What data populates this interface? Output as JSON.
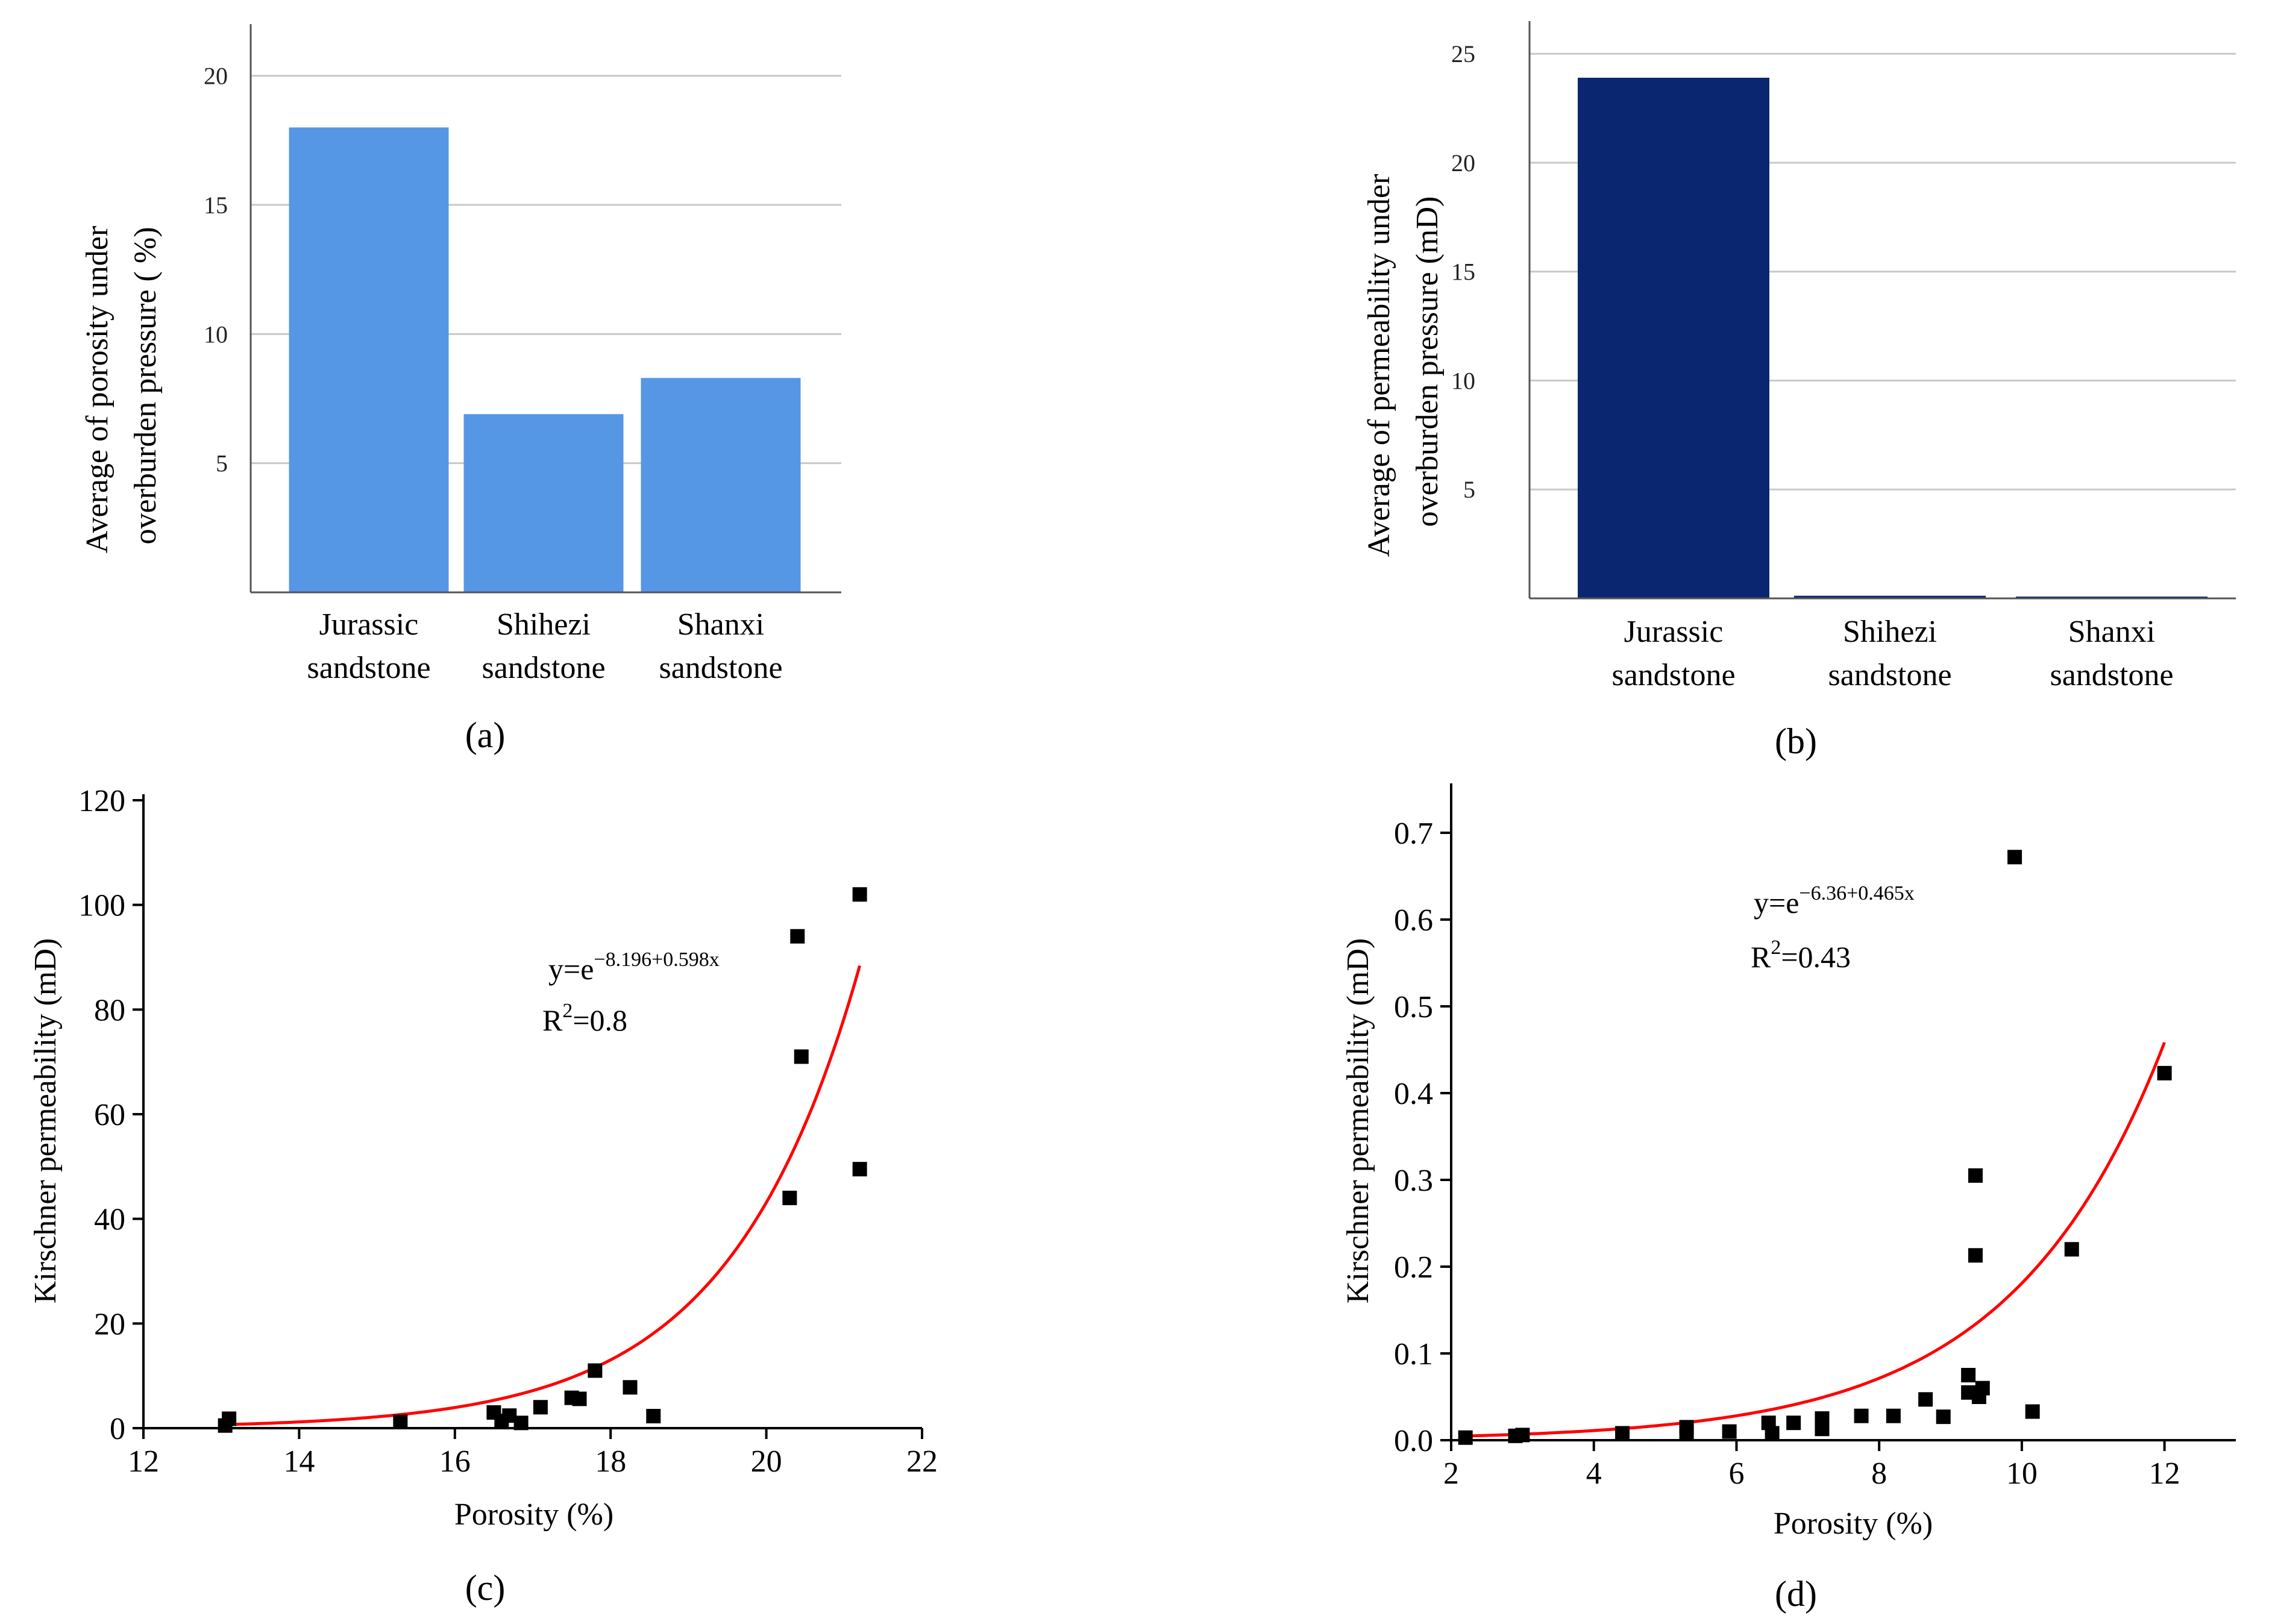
{
  "colors": {
    "bar_a": "#5697e5",
    "bar_b": "#0b2670",
    "fit_line": "#ff0000",
    "points": "#000000"
  },
  "chart_data": [
    {
      "id": "a",
      "type": "bar",
      "panel_label": "(a)",
      "categories": [
        "Jurassic sandstone",
        "Shihezi sandstone",
        "Shanxi sandstone"
      ],
      "category_lines": [
        [
          "Jurassic",
          "sandstone"
        ],
        [
          "Shihezi",
          "sandstone"
        ],
        [
          "Shanxi",
          "sandstone"
        ]
      ],
      "values": [
        18.0,
        6.9,
        8.3
      ],
      "ylabel": [
        "Average of porosity under",
        "overburden pressure ( %)"
      ],
      "ylim": [
        0,
        22
      ],
      "yticks": [
        5,
        10,
        15,
        20
      ],
      "grid": true
    },
    {
      "id": "b",
      "type": "bar",
      "panel_label": "(b)",
      "categories": [
        "Jurassic sandstone",
        "Shihezi sandstone",
        "Shanxi sandstone"
      ],
      "category_lines": [
        [
          "Jurassic",
          "sandstone"
        ],
        [
          "Shihezi",
          "sandstone"
        ],
        [
          "Shanxi",
          "sandstone"
        ]
      ],
      "values": [
        23.9,
        0.12,
        0.02
      ],
      "ylabel": [
        "Average of permeability under",
        "overburden pressure (mD)"
      ],
      "ylim": [
        0,
        26.5
      ],
      "yticks": [
        5,
        10,
        15,
        20,
        25
      ],
      "grid": true
    },
    {
      "id": "c",
      "type": "scatter",
      "panel_label": "(c)",
      "xlabel": "Porosity (%)",
      "ylabel": "Kirschner permeability (mD)",
      "xlim": [
        12,
        22
      ],
      "ylim": [
        0,
        120
      ],
      "xticks": [
        12,
        14,
        16,
        18,
        20,
        22
      ],
      "yticks": [
        0,
        20,
        40,
        60,
        80,
        100,
        120
      ],
      "equation": {
        "base": "y=e",
        "exponent": "−8.196+0.598x",
        "r2_prefix": "R",
        "r2_sup": "2",
        "r2_value": "=0.8"
      },
      "fit": {
        "a": -8.196,
        "b": 0.598,
        "x_range": [
          13.1,
          21.2
        ]
      },
      "points": [
        [
          13.05,
          0.5
        ],
        [
          13.1,
          1.8
        ],
        [
          15.3,
          1.2
        ],
        [
          16.5,
          3.0
        ],
        [
          16.6,
          1.4
        ],
        [
          16.7,
          2.4
        ],
        [
          16.85,
          1.0
        ],
        [
          17.1,
          4.0
        ],
        [
          17.5,
          5.8
        ],
        [
          17.6,
          5.6
        ],
        [
          17.8,
          11.0
        ],
        [
          18.25,
          7.8
        ],
        [
          18.55,
          2.3
        ],
        [
          20.3,
          44.0
        ],
        [
          20.4,
          94.0
        ],
        [
          20.45,
          71.0
        ],
        [
          21.2,
          102.0
        ],
        [
          21.2,
          49.5
        ]
      ]
    },
    {
      "id": "d",
      "type": "scatter",
      "panel_label": "(d)",
      "xlabel": "Porosity (%)",
      "ylabel": "Kirschner permeability (mD)",
      "xlim": [
        2,
        13
      ],
      "ylim": [
        0,
        0.75
      ],
      "xticks": [
        2,
        4,
        6,
        8,
        10,
        12
      ],
      "yticks": [
        0.0,
        0.1,
        0.2,
        0.3,
        0.4,
        0.5,
        0.6,
        0.7
      ],
      "ytick_labels": [
        "0.0",
        "0.1",
        "0.2",
        "0.3",
        "0.4",
        "0.5",
        "0.6",
        "0.7"
      ],
      "equation": {
        "base": "y=e",
        "exponent": "−6.36+0.465x",
        "r2_prefix": "R",
        "r2_sup": "2",
        "r2_value": "=0.43"
      },
      "fit": {
        "a": -6.36,
        "b": 0.465,
        "x_range": [
          2.2,
          12.0
        ]
      },
      "points": [
        [
          2.2,
          0.003
        ],
        [
          2.9,
          0.005
        ],
        [
          3.0,
          0.006
        ],
        [
          4.4,
          0.008
        ],
        [
          5.3,
          0.015
        ],
        [
          5.3,
          0.008
        ],
        [
          5.9,
          0.01
        ],
        [
          6.45,
          0.02
        ],
        [
          6.5,
          0.008
        ],
        [
          6.8,
          0.02
        ],
        [
          7.2,
          0.025
        ],
        [
          7.2,
          0.013
        ],
        [
          7.75,
          0.028
        ],
        [
          8.2,
          0.028
        ],
        [
          8.65,
          0.047
        ],
        [
          8.9,
          0.027
        ],
        [
          9.25,
          0.075
        ],
        [
          9.25,
          0.055
        ],
        [
          9.35,
          0.305
        ],
        [
          9.35,
          0.213
        ],
        [
          9.4,
          0.05
        ],
        [
          9.45,
          0.06
        ],
        [
          9.9,
          0.672
        ],
        [
          10.15,
          0.033
        ],
        [
          10.7,
          0.22
        ],
        [
          12.0,
          0.423
        ]
      ]
    }
  ]
}
